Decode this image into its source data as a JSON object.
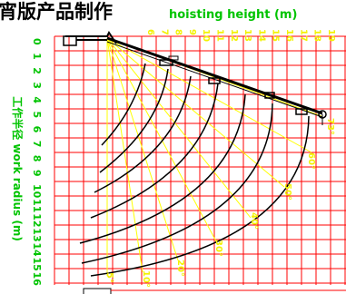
{
  "header": {
    "title": "宵版产品制作",
    "x_axis_label": "hoisting height (m)"
  },
  "y_axis_label": "工作半径 work radius (m)",
  "colors": {
    "grid": "#ff0000",
    "axis_labels": "#00c400",
    "height_labels": "#f2f200",
    "boom": "#000000",
    "curves": "#000000",
    "angle_lines": "#ffff00"
  },
  "chart_data": {
    "type": "diagram",
    "title": "",
    "x_ticks": [
      "6",
      "7",
      "8",
      "9",
      "10",
      "11",
      "12",
      "13",
      "14",
      "15",
      "16",
      "17",
      "18",
      "19"
    ],
    "y_ticks": [
      "0",
      "1",
      "2",
      "3",
      "4",
      "5",
      "6",
      "7",
      "8",
      "9",
      "10",
      "11",
      "12",
      "13",
      "14",
      "15",
      "16"
    ],
    "angle_labels": [
      "73°",
      "60°",
      "50°",
      "40°",
      "30°",
      "20°",
      "10°",
      "5°"
    ]
  }
}
